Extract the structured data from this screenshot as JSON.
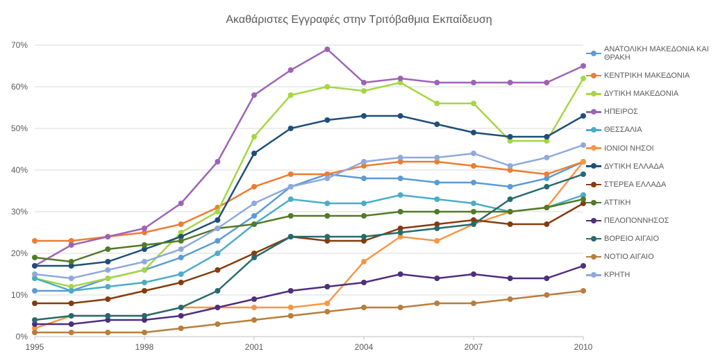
{
  "chart": {
    "title": "Ακαθάριστες Εγγραφές στην Τριτόβαθμια Εκπαίδευση",
    "title_fontsize": 16,
    "title_color": "#595959",
    "background_color": "#ffffff",
    "grid_color": "#d9d9d9",
    "axis_color": "#bfbfbf",
    "label_color": "#595959",
    "type": "line",
    "xlim": [
      1995,
      2010
    ],
    "ylim": [
      0,
      70
    ],
    "ytick_step": 10,
    "xtick_step": 3,
    "x_values": [
      1995,
      1996,
      1997,
      1998,
      1999,
      2000,
      2001,
      2002,
      2003,
      2004,
      2005,
      2006,
      2007,
      2008,
      2009,
      2010
    ],
    "y_ticks": [
      0,
      10,
      20,
      30,
      40,
      50,
      60,
      70
    ],
    "y_tick_labels": [
      "0%",
      "10%",
      "20%",
      "30%",
      "40%",
      "50%",
      "60%",
      "70%"
    ],
    "x_tick_years": [
      1995,
      1998,
      2001,
      2004,
      2007,
      2010
    ],
    "x_tick_labels": [
      "1995",
      "1998",
      "2001",
      "2004",
      "2007",
      "2010"
    ],
    "line_width": 2.5,
    "marker_size": 4,
    "series": [
      {
        "name": "ΑΝΑΤΟΛΙΚΗ ΜΑΚΕΔΟΝΙΑ ΚΑΙ ΘΡΑΚΗ",
        "color": "#5b9bd5",
        "values": [
          11,
          11,
          14,
          16,
          19,
          23,
          29,
          36,
          39,
          38,
          38,
          37,
          37,
          36,
          38,
          42
        ]
      },
      {
        "name": "ΚΕΝΤΡΙΚΗ ΜΑΚΕΔΟΝΙΑ",
        "color": "#ed7d31",
        "values": [
          23,
          23,
          24,
          25,
          27,
          31,
          36,
          39,
          39,
          41,
          42,
          42,
          41,
          40,
          39,
          42
        ]
      },
      {
        "name": "ΔΥΤΙΚΗ ΜΑΚΕΔΟΝΙΑ",
        "color": "#a5d643",
        "values": [
          14,
          12,
          14,
          16,
          25,
          30,
          48,
          58,
          60,
          59,
          61,
          56,
          56,
          47,
          47,
          62
        ]
      },
      {
        "name": "ΗΠΕΙΡΟΣ",
        "color": "#9e63b5",
        "values": [
          17,
          22,
          24,
          26,
          32,
          42,
          58,
          64,
          69,
          61,
          62,
          61,
          61,
          61,
          61,
          65
        ]
      },
      {
        "name": "ΘΕΣΣΑΛΙΑ",
        "color": "#4bacc6",
        "values": [
          14,
          11,
          12,
          13,
          15,
          20,
          27,
          33,
          32,
          32,
          34,
          33,
          32,
          30,
          31,
          34
        ]
      },
      {
        "name": "ΙΟΝΙΟΙ ΝΗΣΟΙ",
        "color": "#f79646",
        "values": [
          2,
          5,
          5,
          5,
          7,
          7,
          7,
          7,
          8,
          18,
          24,
          23,
          27,
          30,
          31,
          42
        ]
      },
      {
        "name": "ΔΥΤΙΚΗ ΕΛΛΑΔΑ",
        "color": "#1f4e79",
        "values": [
          17,
          17,
          18,
          21,
          24,
          28,
          44,
          50,
          52,
          53,
          53,
          51,
          49,
          48,
          48,
          53
        ]
      },
      {
        "name": "ΣΤΕΡΕΑ ΕΛΛΑΔΑ",
        "color": "#843c0c",
        "values": [
          8,
          8,
          9,
          11,
          13,
          16,
          20,
          24,
          23,
          23,
          26,
          27,
          28,
          27,
          27,
          32
        ]
      },
      {
        "name": "ΑΤΤΙΚΗ",
        "color": "#527a27",
        "values": [
          19,
          18,
          21,
          22,
          23,
          26,
          27,
          29,
          29,
          29,
          30,
          30,
          30,
          30,
          31,
          33
        ]
      },
      {
        "name": "ΠΕΛΟΠΟΝΝΗΣΟΣ",
        "color": "#4f2d7f",
        "values": [
          3,
          3,
          4,
          4,
          5,
          7,
          9,
          11,
          12,
          13,
          15,
          14,
          15,
          14,
          14,
          17
        ]
      },
      {
        "name": "ΒΟΡΕΙΟ ΑΙΓΑΙΟ",
        "color": "#276a6e",
        "values": [
          4,
          5,
          5,
          5,
          7,
          11,
          19,
          24,
          24,
          24,
          25,
          26,
          27,
          33,
          36,
          39
        ]
      },
      {
        "name": "ΝΟΤΙΟ ΑΙΓΑΙΟ",
        "color": "#b97d3c",
        "values": [
          1,
          1,
          1,
          1,
          2,
          3,
          4,
          5,
          6,
          7,
          7,
          8,
          8,
          9,
          10,
          11
        ]
      },
      {
        "name": "ΚΡΗΤΗ",
        "color": "#8ea9db",
        "values": [
          15,
          14,
          16,
          18,
          21,
          26,
          32,
          36,
          38,
          42,
          43,
          43,
          44,
          41,
          43,
          46
        ]
      }
    ]
  }
}
